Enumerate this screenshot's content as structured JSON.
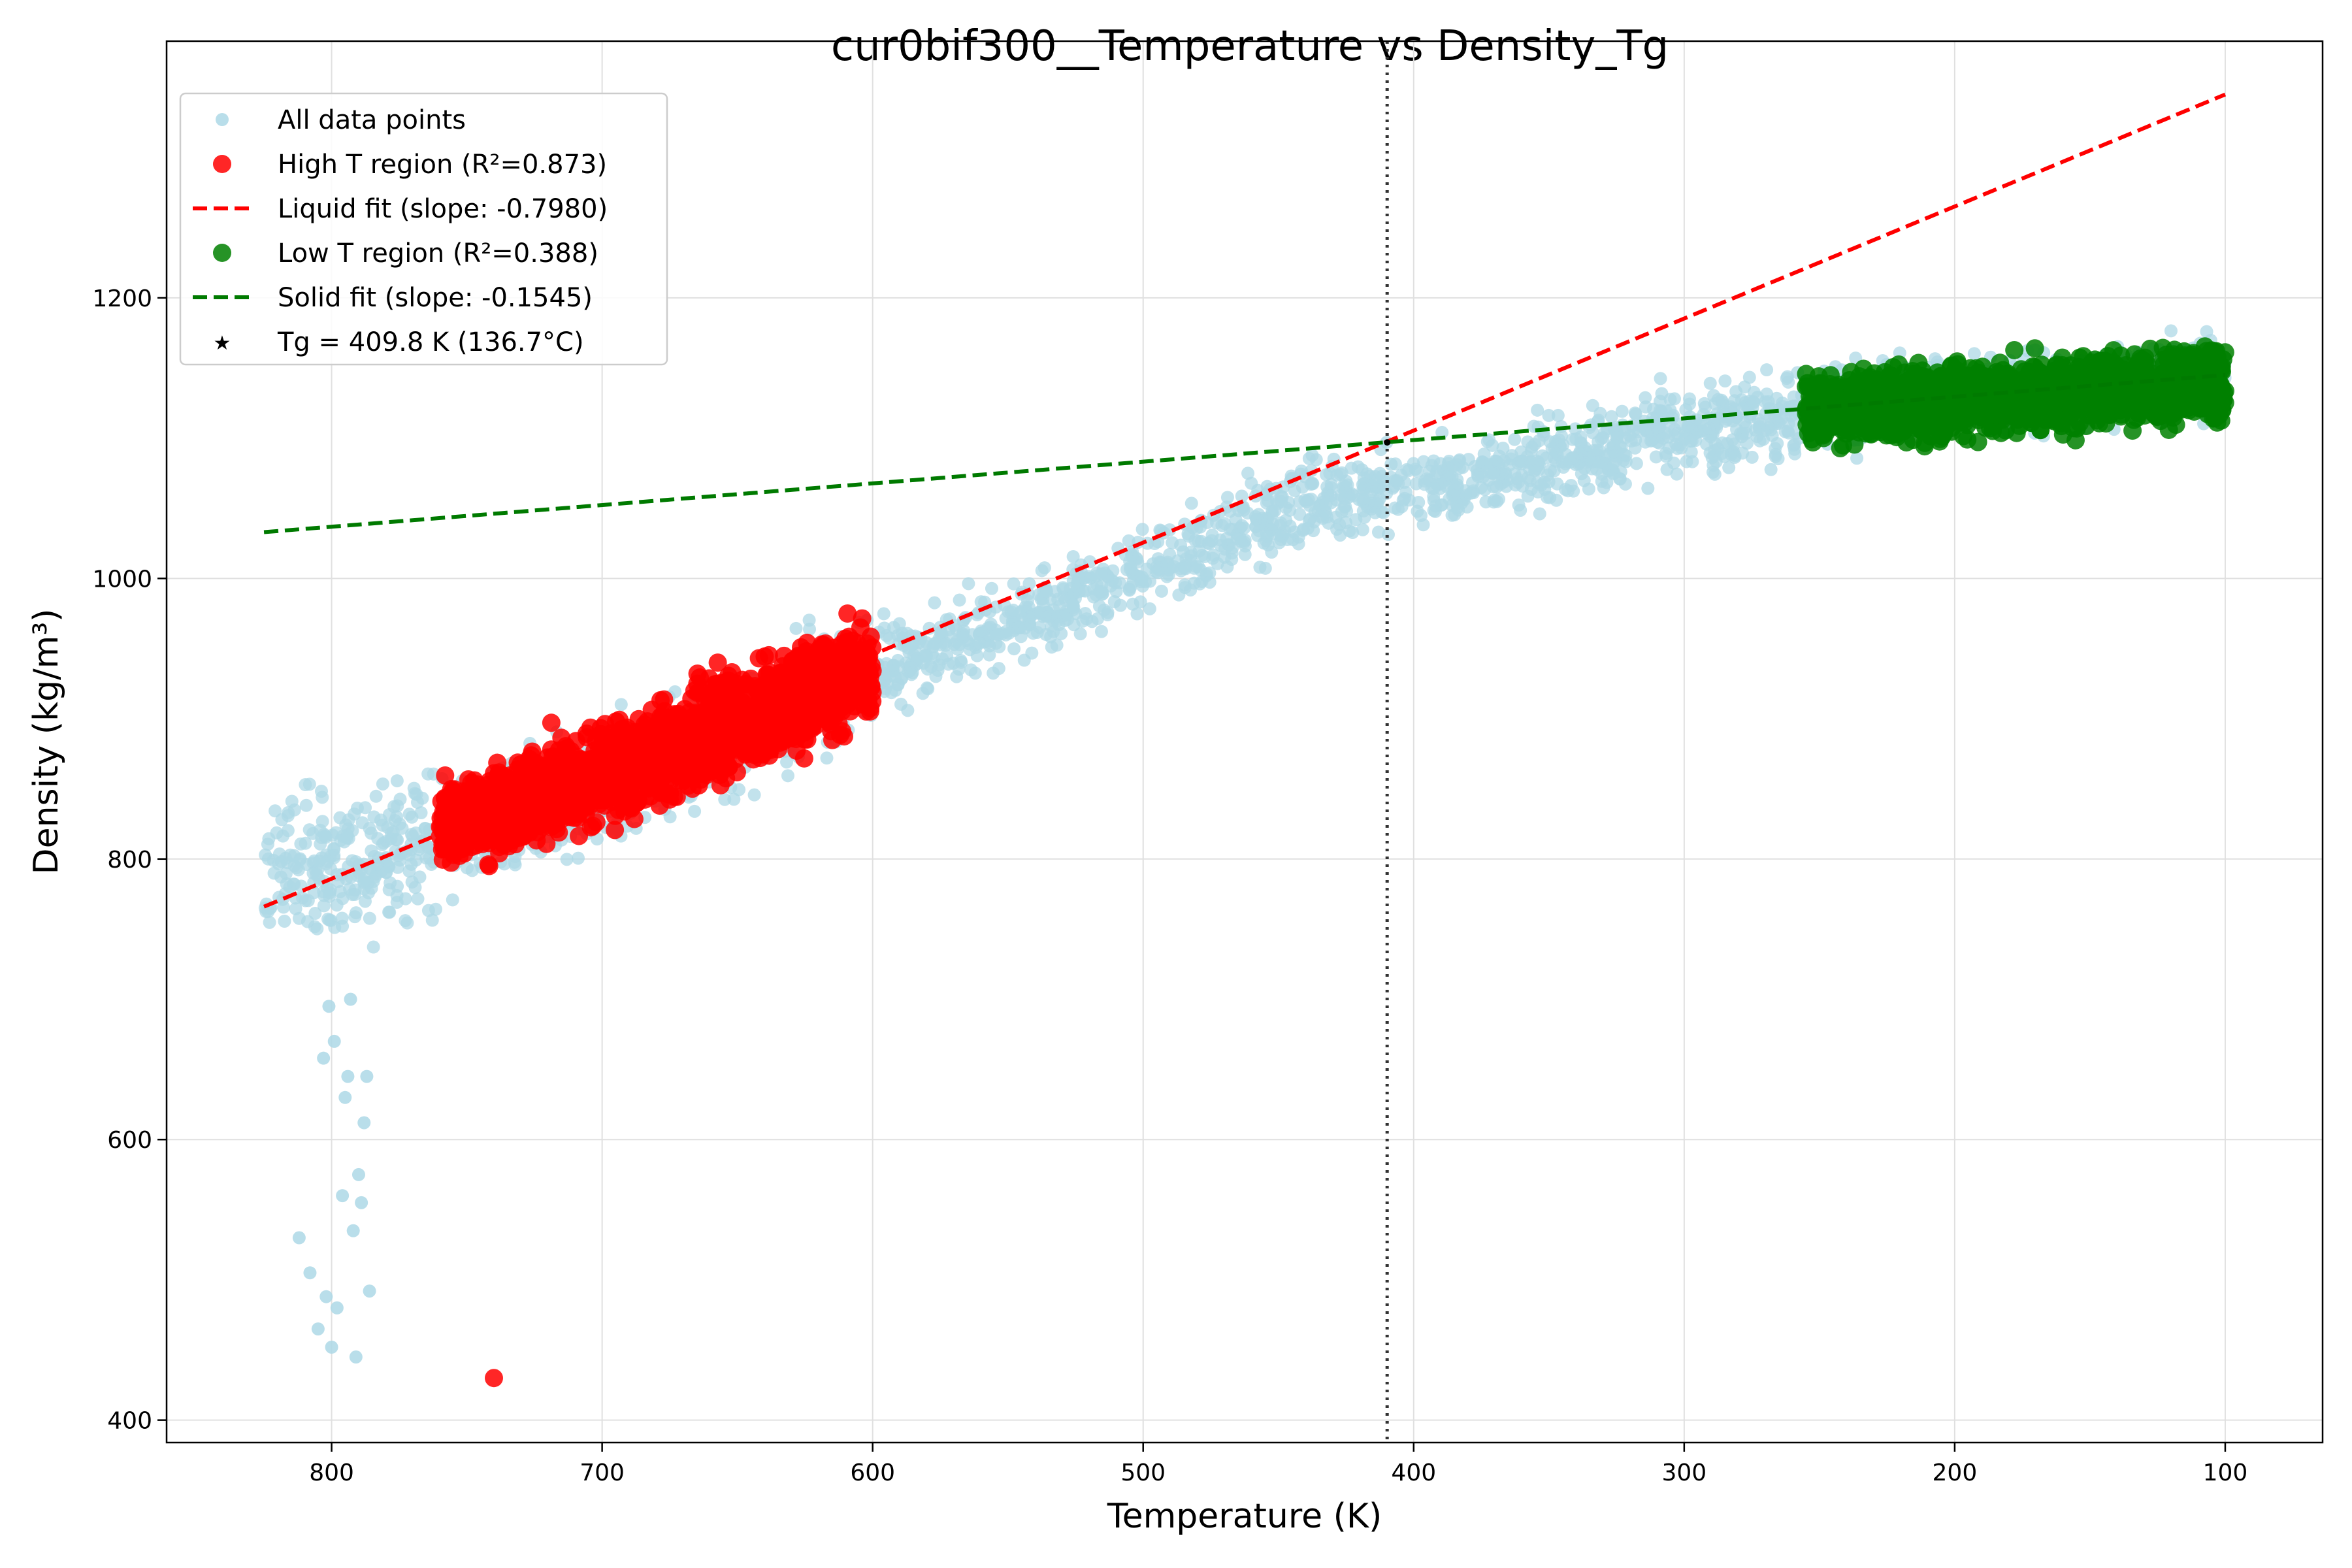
{
  "chart_data": {
    "type": "scatter",
    "title": "cur0bif300__Temperature vs Density_Tg",
    "xlabel": "Temperature (K)",
    "ylabel": "Density (kg/m³)",
    "xlim": [
      861,
      64
    ],
    "ylim": [
      384,
      1383
    ],
    "x_inverted": true,
    "grid": true,
    "xticks": [
      800,
      700,
      600,
      500,
      400,
      300,
      200,
      100
    ],
    "yticks": [
      400,
      600,
      800,
      1000,
      1200
    ],
    "legend_position": "top-left",
    "colors": {
      "all_points": "#add8e6",
      "high_t": "#ff0000",
      "low_t": "#008000",
      "liquid_fit": "#ff0000",
      "solid_fit": "#007a00",
      "tg_line": "#333333",
      "grid": "#e0e0e0"
    },
    "series": [
      {
        "name": "All data points",
        "kind": "scatter",
        "x_range": [
          825,
          100
        ],
        "density_trend": [
          [
            825,
            790
          ],
          [
            800,
            795
          ],
          [
            760,
            818
          ],
          [
            700,
            850
          ],
          [
            600,
            932
          ],
          [
            500,
            1005
          ],
          [
            440,
            1052
          ],
          [
            410,
            1062
          ],
          [
            380,
            1072
          ],
          [
            300,
            1105
          ],
          [
            250,
            1120
          ],
          [
            100,
            1145
          ]
        ],
        "outliers": [
          [
            812,
            530
          ],
          [
            808,
            505
          ],
          [
            805,
            465
          ],
          [
            802,
            488
          ],
          [
            800,
            452
          ],
          [
            798,
            480
          ],
          [
            796,
            560
          ],
          [
            795,
            630
          ],
          [
            794,
            645
          ],
          [
            793,
            700
          ],
          [
            792,
            535
          ],
          [
            791,
            445
          ],
          [
            790,
            575
          ],
          [
            789,
            555
          ],
          [
            788,
            612
          ],
          [
            787,
            645
          ],
          [
            786,
            492
          ],
          [
            799,
            670
          ],
          [
            801,
            695
          ],
          [
            803,
            658
          ]
        ]
      },
      {
        "name": "High T region (R²=0.873)",
        "kind": "scatter",
        "x_range": [
          760,
          600
        ],
        "density_trend": [
          [
            760,
            822
          ],
          [
            700,
            860
          ],
          [
            600,
            935
          ]
        ],
        "outliers": [
          [
            740,
            430
          ]
        ]
      },
      {
        "name": "Liquid fit (slope: -0.7980)",
        "kind": "line",
        "style": "dashed",
        "x": [
          825,
          100
        ],
        "y": [
          766,
          1345
        ]
      },
      {
        "name": "Low T region (R²=0.388)",
        "kind": "scatter",
        "x_range": [
          255,
          100
        ],
        "density_trend": [
          [
            255,
            1120
          ],
          [
            180,
            1130
          ],
          [
            100,
            1140
          ]
        ]
      },
      {
        "name": "Solid fit (slope: -0.1545)",
        "kind": "line",
        "style": "dashed",
        "x": [
          825,
          100
        ],
        "y": [
          1033,
          1145
        ]
      },
      {
        "name": "Tg = 409.8 K (136.7°C)",
        "kind": "marker"
      }
    ],
    "tg": {
      "x": 409.8,
      "y": 1097,
      "label": "Tg = 409.8 K (136.7°C)"
    }
  }
}
